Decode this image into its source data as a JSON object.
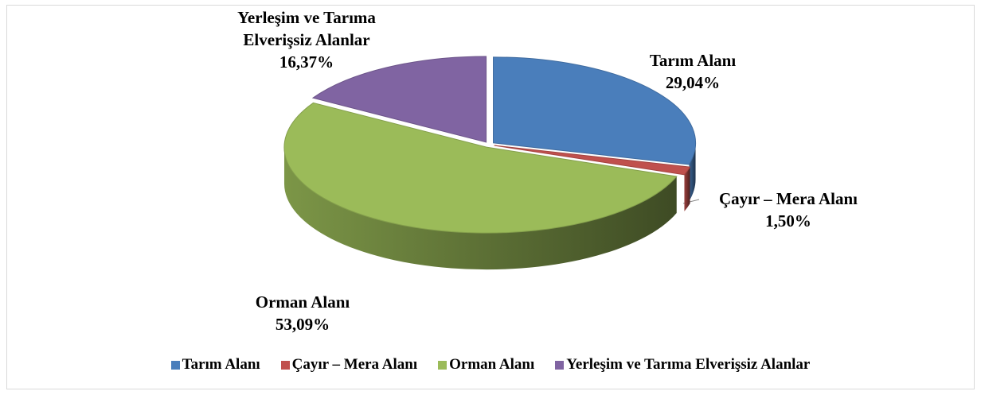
{
  "chart_data": {
    "type": "pie",
    "categories": [
      "Tarım Alanı",
      "Çayır – Mera Alanı",
      "Orman Alanı",
      "Yerleşim ve Tarıma Elverişsiz Alanlar"
    ],
    "values": [
      29.04,
      1.5,
      53.09,
      16.37
    ],
    "value_labels": [
      "29,04%",
      "1,50%",
      "53,09%",
      "16,37%"
    ],
    "colors": [
      "#4a7ebb",
      "#c0504d",
      "#9bbb59",
      "#8064a2"
    ],
    "legend": "bottom"
  }
}
